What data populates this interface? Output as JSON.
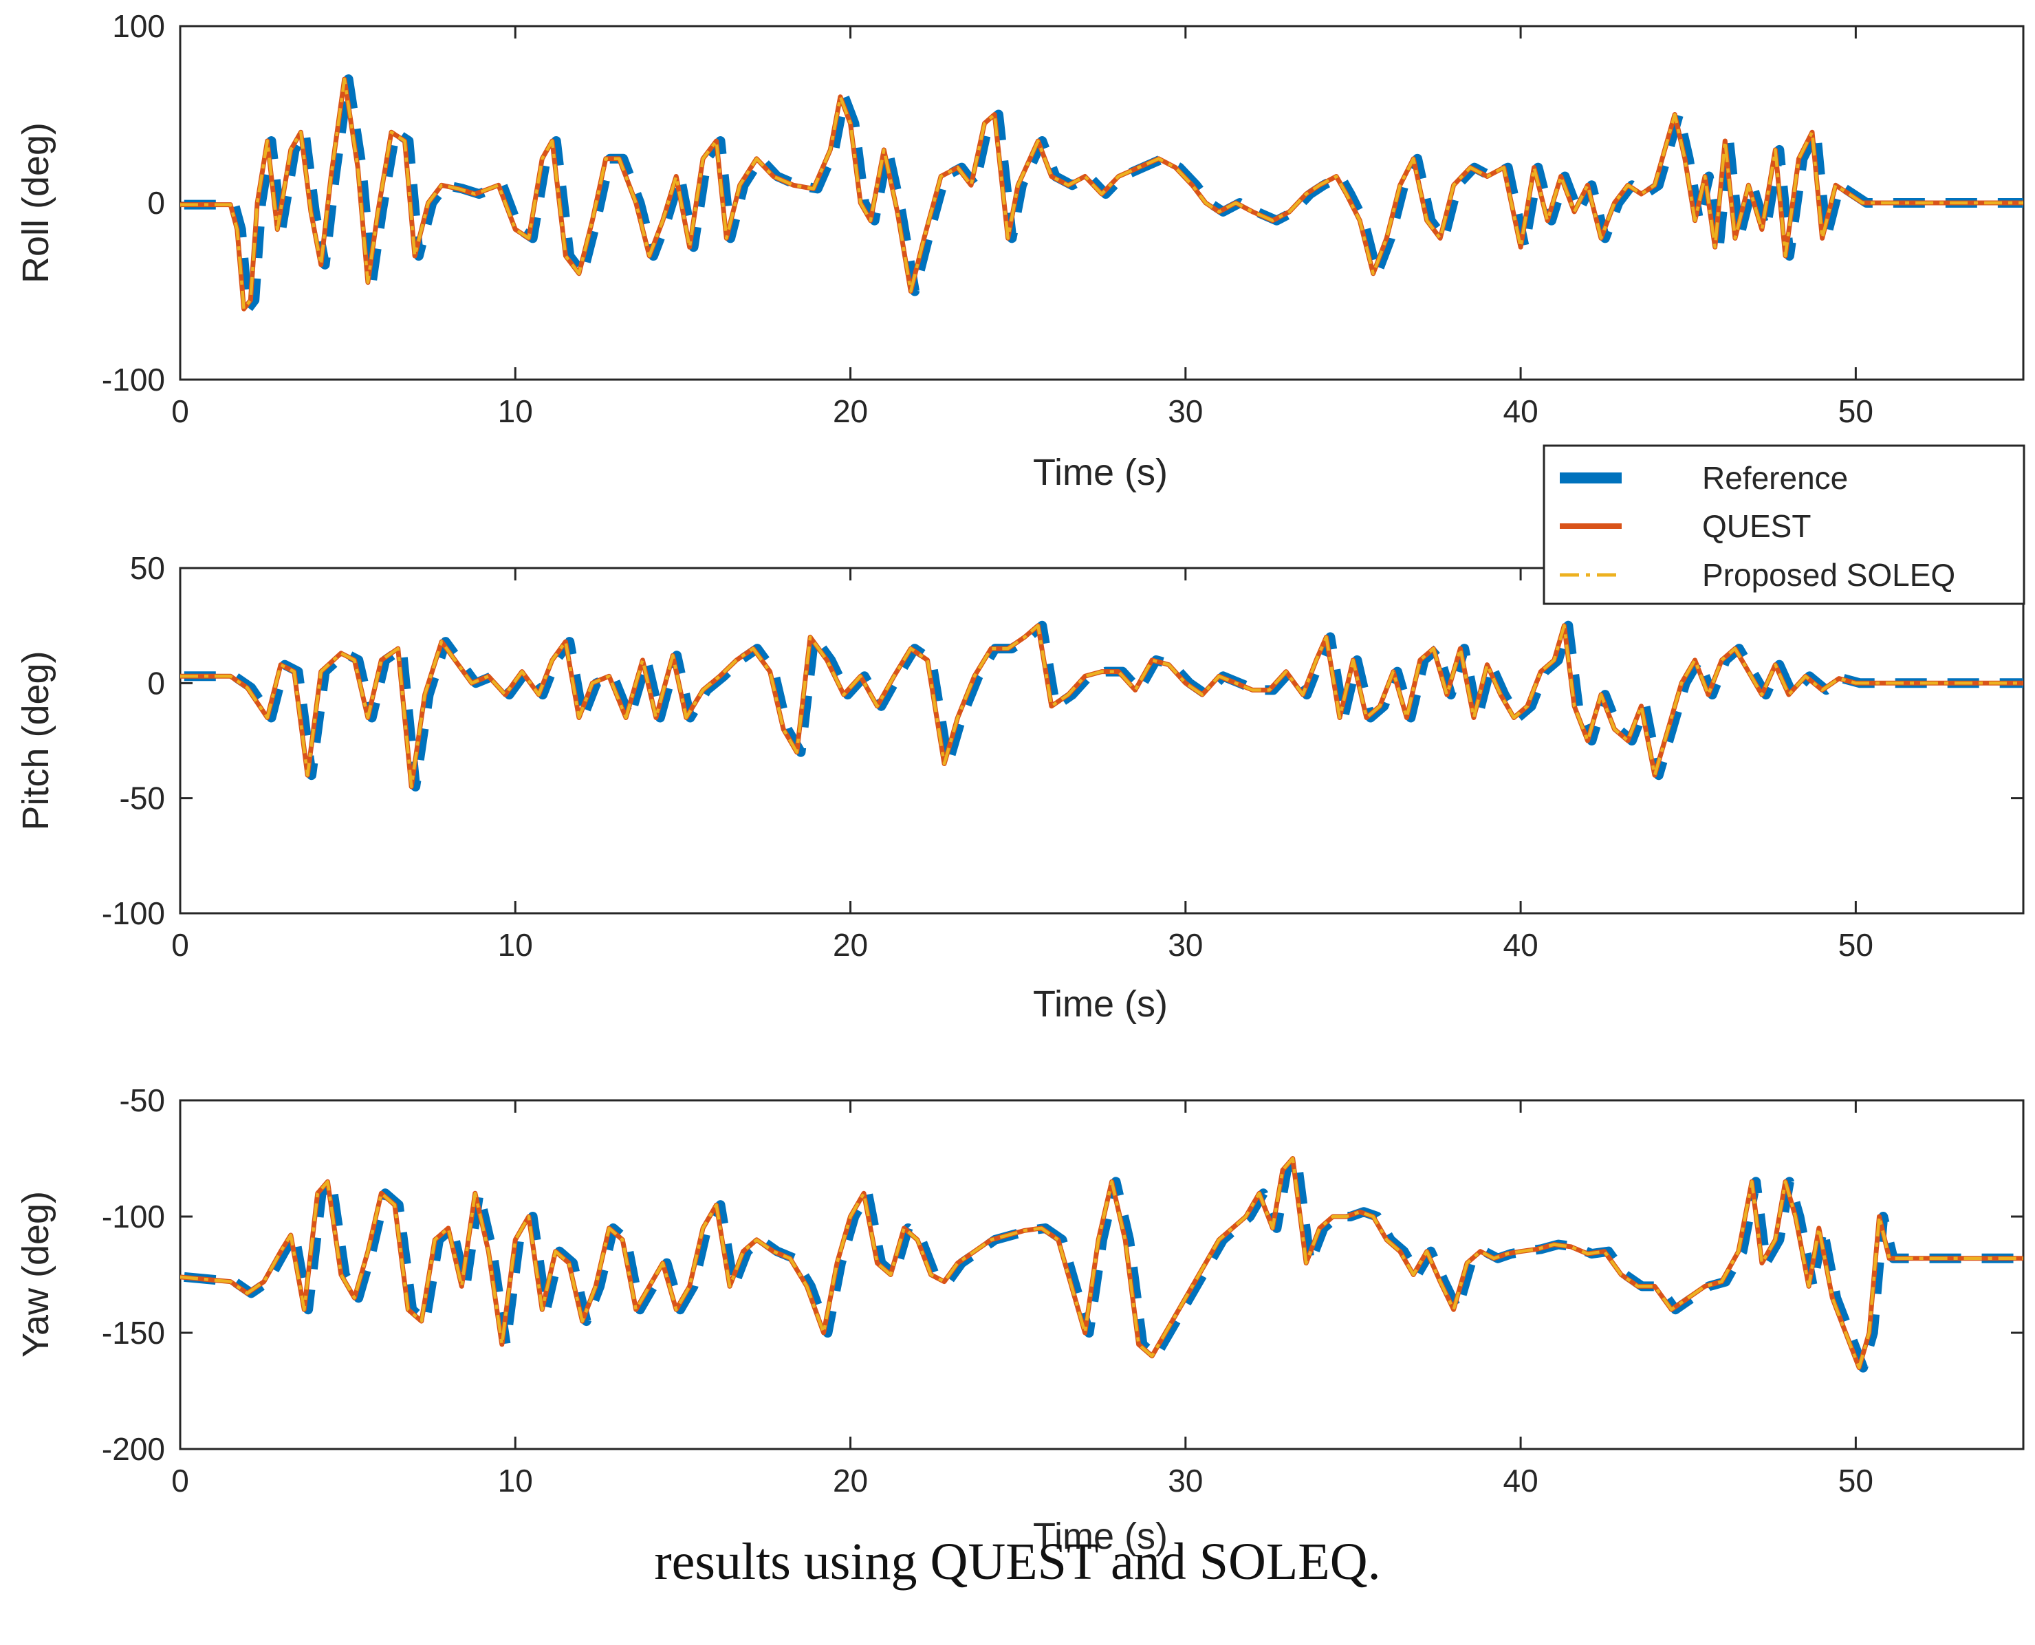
{
  "caption": "results using QUEST and SOLEQ.",
  "colors": {
    "reference": "#0072BD",
    "quest": "#D95319",
    "soleq": "#EDB120",
    "axis": "#262626"
  },
  "legend": {
    "entries": [
      "Reference",
      "QUEST",
      "Proposed SOLEQ"
    ],
    "placement": "between top and middle panels, right"
  },
  "chart_data": [
    {
      "type": "line",
      "ylabel": "Roll (deg)",
      "xlabel": "Time (s)",
      "xlim": [
        0,
        55
      ],
      "ylim": [
        -100,
        100
      ],
      "xticks": [
        0,
        10,
        20,
        30,
        40,
        50
      ],
      "yticks": [
        -100,
        0,
        100
      ],
      "series_names": [
        "Reference",
        "QUEST",
        "Proposed SOLEQ"
      ],
      "points": [
        [
          0,
          -1
        ],
        [
          1.5,
          -1
        ],
        [
          1.7,
          -15
        ],
        [
          1.9,
          -60
        ],
        [
          2.1,
          -55
        ],
        [
          2.3,
          0
        ],
        [
          2.6,
          35
        ],
        [
          2.9,
          -15
        ],
        [
          3.3,
          30
        ],
        [
          3.6,
          40
        ],
        [
          3.9,
          -5
        ],
        [
          4.2,
          -35
        ],
        [
          4.5,
          15
        ],
        [
          4.9,
          70
        ],
        [
          5.3,
          20
        ],
        [
          5.6,
          -45
        ],
        [
          5.9,
          -5
        ],
        [
          6.3,
          40
        ],
        [
          6.7,
          35
        ],
        [
          7.0,
          -30
        ],
        [
          7.4,
          0
        ],
        [
          7.8,
          10
        ],
        [
          8.3,
          8
        ],
        [
          8.8,
          5
        ],
        [
          9.5,
          10
        ],
        [
          10.0,
          -15
        ],
        [
          10.4,
          -20
        ],
        [
          10.8,
          25
        ],
        [
          11.1,
          35
        ],
        [
          11.5,
          -30
        ],
        [
          11.9,
          -40
        ],
        [
          12.3,
          -10
        ],
        [
          12.7,
          25
        ],
        [
          13.1,
          25
        ],
        [
          13.6,
          0
        ],
        [
          14.0,
          -30
        ],
        [
          14.4,
          -10
        ],
        [
          14.8,
          15
        ],
        [
          15.2,
          -25
        ],
        [
          15.6,
          25
        ],
        [
          16.0,
          35
        ],
        [
          16.3,
          -20
        ],
        [
          16.7,
          10
        ],
        [
          17.2,
          25
        ],
        [
          17.7,
          15
        ],
        [
          18.3,
          10
        ],
        [
          18.9,
          8
        ],
        [
          19.4,
          30
        ],
        [
          19.7,
          60
        ],
        [
          20.0,
          45
        ],
        [
          20.3,
          0
        ],
        [
          20.6,
          -10
        ],
        [
          21.0,
          30
        ],
        [
          21.4,
          -5
        ],
        [
          21.8,
          -50
        ],
        [
          22.2,
          -20
        ],
        [
          22.7,
          15
        ],
        [
          23.2,
          20
        ],
        [
          23.6,
          10
        ],
        [
          24.0,
          45
        ],
        [
          24.3,
          50
        ],
        [
          24.7,
          -20
        ],
        [
          25.0,
          10
        ],
        [
          25.6,
          35
        ],
        [
          26.0,
          15
        ],
        [
          26.5,
          10
        ],
        [
          27.0,
          15
        ],
        [
          27.5,
          5
        ],
        [
          28.0,
          15
        ],
        [
          28.6,
          20
        ],
        [
          29.2,
          25
        ],
        [
          29.7,
          20
        ],
        [
          30.2,
          10
        ],
        [
          30.6,
          0
        ],
        [
          31.0,
          -5
        ],
        [
          31.5,
          0
        ],
        [
          32.0,
          -5
        ],
        [
          32.6,
          -10
        ],
        [
          33.1,
          -5
        ],
        [
          33.6,
          5
        ],
        [
          34.0,
          10
        ],
        [
          34.5,
          15
        ],
        [
          34.8,
          5
        ],
        [
          35.2,
          -10
        ],
        [
          35.6,
          -40
        ],
        [
          36.0,
          -20
        ],
        [
          36.4,
          10
        ],
        [
          36.8,
          25
        ],
        [
          37.2,
          -10
        ],
        [
          37.6,
          -20
        ],
        [
          38.0,
          10
        ],
        [
          38.5,
          20
        ],
        [
          39.0,
          15
        ],
        [
          39.5,
          20
        ],
        [
          40.0,
          -25
        ],
        [
          40.4,
          20
        ],
        [
          40.8,
          -10
        ],
        [
          41.2,
          15
        ],
        [
          41.6,
          -5
        ],
        [
          42.0,
          10
        ],
        [
          42.4,
          -20
        ],
        [
          42.8,
          0
        ],
        [
          43.2,
          10
        ],
        [
          43.6,
          5
        ],
        [
          44.0,
          10
        ],
        [
          44.3,
          30
        ],
        [
          44.6,
          50
        ],
        [
          44.9,
          25
        ],
        [
          45.2,
          -10
        ],
        [
          45.5,
          15
        ],
        [
          45.8,
          -25
        ],
        [
          46.1,
          35
        ],
        [
          46.4,
          -20
        ],
        [
          46.8,
          10
        ],
        [
          47.2,
          -15
        ],
        [
          47.6,
          30
        ],
        [
          47.9,
          -30
        ],
        [
          48.3,
          25
        ],
        [
          48.7,
          40
        ],
        [
          49.0,
          -20
        ],
        [
          49.4,
          10
        ],
        [
          49.8,
          5
        ],
        [
          50.2,
          0
        ],
        [
          55,
          0
        ]
      ]
    },
    {
      "type": "line",
      "ylabel": "Pitch (deg)",
      "xlabel": "Time (s)",
      "xlim": [
        0,
        55
      ],
      "ylim": [
        -100,
        50
      ],
      "xticks": [
        0,
        10,
        20,
        30,
        40,
        50
      ],
      "yticks": [
        -100,
        -50,
        0,
        50
      ],
      "series_names": [
        "Reference",
        "QUEST",
        "Proposed SOLEQ"
      ],
      "points": [
        [
          0,
          3
        ],
        [
          1.5,
          3
        ],
        [
          2.0,
          -2
        ],
        [
          2.6,
          -15
        ],
        [
          3.0,
          8
        ],
        [
          3.4,
          5
        ],
        [
          3.8,
          -40
        ],
        [
          4.2,
          5
        ],
        [
          4.8,
          13
        ],
        [
          5.2,
          10
        ],
        [
          5.6,
          -15
        ],
        [
          6.0,
          10
        ],
        [
          6.5,
          15
        ],
        [
          6.9,
          -45
        ],
        [
          7.3,
          -5
        ],
        [
          7.8,
          18
        ],
        [
          8.2,
          10
        ],
        [
          8.7,
          0
        ],
        [
          9.2,
          3
        ],
        [
          9.7,
          -5
        ],
        [
          10.2,
          5
        ],
        [
          10.7,
          -5
        ],
        [
          11.1,
          10
        ],
        [
          11.5,
          18
        ],
        [
          11.9,
          -15
        ],
        [
          12.3,
          0
        ],
        [
          12.8,
          3
        ],
        [
          13.3,
          -15
        ],
        [
          13.8,
          10
        ],
        [
          14.2,
          -15
        ],
        [
          14.7,
          12
        ],
        [
          15.1,
          -15
        ],
        [
          15.6,
          -3
        ],
        [
          16.1,
          3
        ],
        [
          16.6,
          10
        ],
        [
          17.1,
          15
        ],
        [
          17.6,
          5
        ],
        [
          18.0,
          -20
        ],
        [
          18.4,
          -30
        ],
        [
          18.8,
          20
        ],
        [
          19.3,
          10
        ],
        [
          19.8,
          -5
        ],
        [
          20.3,
          3
        ],
        [
          20.8,
          -10
        ],
        [
          21.3,
          3
        ],
        [
          21.8,
          15
        ],
        [
          22.3,
          10
        ],
        [
          22.8,
          -35
        ],
        [
          23.2,
          -15
        ],
        [
          23.7,
          3
        ],
        [
          24.2,
          15
        ],
        [
          24.7,
          15
        ],
        [
          25.2,
          20
        ],
        [
          25.6,
          25
        ],
        [
          26.0,
          -10
        ],
        [
          26.5,
          -5
        ],
        [
          27.0,
          3
        ],
        [
          27.5,
          5
        ],
        [
          28.0,
          5
        ],
        [
          28.5,
          -3
        ],
        [
          29.0,
          10
        ],
        [
          29.5,
          8
        ],
        [
          30.0,
          0
        ],
        [
          30.5,
          -5
        ],
        [
          31.0,
          3
        ],
        [
          31.5,
          0
        ],
        [
          32.0,
          -3
        ],
        [
          32.5,
          -3
        ],
        [
          33.0,
          5
        ],
        [
          33.5,
          -5
        ],
        [
          33.9,
          10
        ],
        [
          34.2,
          20
        ],
        [
          34.6,
          -15
        ],
        [
          35.0,
          10
        ],
        [
          35.4,
          -15
        ],
        [
          35.8,
          -10
        ],
        [
          36.2,
          5
        ],
        [
          36.6,
          -15
        ],
        [
          37.0,
          10
        ],
        [
          37.4,
          15
        ],
        [
          37.8,
          -5
        ],
        [
          38.2,
          15
        ],
        [
          38.6,
          -15
        ],
        [
          39.0,
          8
        ],
        [
          39.4,
          -5
        ],
        [
          39.8,
          -15
        ],
        [
          40.2,
          -10
        ],
        [
          40.6,
          5
        ],
        [
          41.0,
          10
        ],
        [
          41.3,
          25
        ],
        [
          41.6,
          -10
        ],
        [
          42.0,
          -25
        ],
        [
          42.4,
          -5
        ],
        [
          42.8,
          -20
        ],
        [
          43.2,
          -25
        ],
        [
          43.6,
          -10
        ],
        [
          44.0,
          -40
        ],
        [
          44.4,
          -20
        ],
        [
          44.8,
          0
        ],
        [
          45.2,
          10
        ],
        [
          45.6,
          -5
        ],
        [
          46.0,
          10
        ],
        [
          46.4,
          15
        ],
        [
          46.8,
          5
        ],
        [
          47.2,
          -5
        ],
        [
          47.6,
          8
        ],
        [
          48.0,
          -5
        ],
        [
          48.5,
          3
        ],
        [
          49.0,
          -3
        ],
        [
          49.5,
          2
        ],
        [
          50.0,
          0
        ],
        [
          55,
          0
        ]
      ]
    },
    {
      "type": "line",
      "ylabel": "Yaw (deg)",
      "xlabel": "Time (s)",
      "xlim": [
        0,
        55
      ],
      "ylim": [
        -200,
        -50
      ],
      "xticks": [
        0,
        10,
        20,
        30,
        40,
        50
      ],
      "yticks": [
        -200,
        -150,
        -100,
        -50
      ],
      "series_names": [
        "Reference",
        "QUEST",
        "Proposed SOLEQ"
      ],
      "points": [
        [
          0,
          -126
        ],
        [
          1.5,
          -128
        ],
        [
          2.0,
          -133
        ],
        [
          2.5,
          -128
        ],
        [
          3.0,
          -115
        ],
        [
          3.3,
          -108
        ],
        [
          3.7,
          -140
        ],
        [
          4.1,
          -90
        ],
        [
          4.4,
          -85
        ],
        [
          4.8,
          -125
        ],
        [
          5.2,
          -135
        ],
        [
          5.6,
          -115
        ],
        [
          6.0,
          -90
        ],
        [
          6.4,
          -95
        ],
        [
          6.8,
          -140
        ],
        [
          7.2,
          -145
        ],
        [
          7.6,
          -110
        ],
        [
          8.0,
          -105
        ],
        [
          8.4,
          -130
        ],
        [
          8.8,
          -90
        ],
        [
          9.2,
          -115
        ],
        [
          9.6,
          -155
        ],
        [
          10.0,
          -110
        ],
        [
          10.4,
          -100
        ],
        [
          10.8,
          -140
        ],
        [
          11.2,
          -115
        ],
        [
          11.6,
          -120
        ],
        [
          12.0,
          -145
        ],
        [
          12.4,
          -130
        ],
        [
          12.8,
          -105
        ],
        [
          13.2,
          -110
        ],
        [
          13.6,
          -140
        ],
        [
          14.0,
          -130
        ],
        [
          14.4,
          -120
        ],
        [
          14.8,
          -140
        ],
        [
          15.2,
          -130
        ],
        [
          15.6,
          -105
        ],
        [
          16.0,
          -95
        ],
        [
          16.4,
          -130
        ],
        [
          16.8,
          -115
        ],
        [
          17.2,
          -110
        ],
        [
          17.7,
          -115
        ],
        [
          18.2,
          -118
        ],
        [
          18.7,
          -130
        ],
        [
          19.2,
          -150
        ],
        [
          19.6,
          -120
        ],
        [
          20.0,
          -100
        ],
        [
          20.4,
          -90
        ],
        [
          20.8,
          -120
        ],
        [
          21.2,
          -125
        ],
        [
          21.6,
          -105
        ],
        [
          22.0,
          -110
        ],
        [
          22.4,
          -125
        ],
        [
          22.8,
          -128
        ],
        [
          23.2,
          -120
        ],
        [
          23.7,
          -115
        ],
        [
          24.2,
          -110
        ],
        [
          24.7,
          -108
        ],
        [
          25.2,
          -106
        ],
        [
          25.7,
          -105
        ],
        [
          26.2,
          -110
        ],
        [
          26.6,
          -130
        ],
        [
          27.0,
          -150
        ],
        [
          27.4,
          -110
        ],
        [
          27.8,
          -85
        ],
        [
          28.2,
          -110
        ],
        [
          28.6,
          -155
        ],
        [
          29.0,
          -160
        ],
        [
          29.4,
          -150
        ],
        [
          29.8,
          -140
        ],
        [
          30.2,
          -130
        ],
        [
          30.6,
          -120
        ],
        [
          31.0,
          -110
        ],
        [
          31.4,
          -105
        ],
        [
          31.8,
          -100
        ],
        [
          32.2,
          -90
        ],
        [
          32.6,
          -105
        ],
        [
          32.9,
          -80
        ],
        [
          33.2,
          -75
        ],
        [
          33.6,
          -120
        ],
        [
          34.0,
          -105
        ],
        [
          34.4,
          -100
        ],
        [
          34.8,
          -100
        ],
        [
          35.2,
          -98
        ],
        [
          35.6,
          -100
        ],
        [
          36.0,
          -110
        ],
        [
          36.4,
          -115
        ],
        [
          36.8,
          -125
        ],
        [
          37.2,
          -115
        ],
        [
          37.6,
          -128
        ],
        [
          38.0,
          -140
        ],
        [
          38.4,
          -120
        ],
        [
          38.8,
          -115
        ],
        [
          39.2,
          -118
        ],
        [
          39.6,
          -116
        ],
        [
          40.0,
          -115
        ],
        [
          40.5,
          -114
        ],
        [
          41.0,
          -112
        ],
        [
          41.5,
          -113
        ],
        [
          42.0,
          -116
        ],
        [
          42.5,
          -115
        ],
        [
          43.0,
          -125
        ],
        [
          43.5,
          -130
        ],
        [
          44.0,
          -130
        ],
        [
          44.5,
          -140
        ],
        [
          45.0,
          -135
        ],
        [
          45.5,
          -130
        ],
        [
          46.0,
          -128
        ],
        [
          46.5,
          -115
        ],
        [
          46.9,
          -85
        ],
        [
          47.2,
          -120
        ],
        [
          47.6,
          -110
        ],
        [
          47.9,
          -85
        ],
        [
          48.2,
          -100
        ],
        [
          48.6,
          -130
        ],
        [
          48.9,
          -105
        ],
        [
          49.3,
          -135
        ],
        [
          49.7,
          -150
        ],
        [
          50.1,
          -165
        ],
        [
          50.4,
          -150
        ],
        [
          50.7,
          -100
        ],
        [
          51.0,
          -118
        ],
        [
          55,
          -118
        ]
      ]
    }
  ]
}
